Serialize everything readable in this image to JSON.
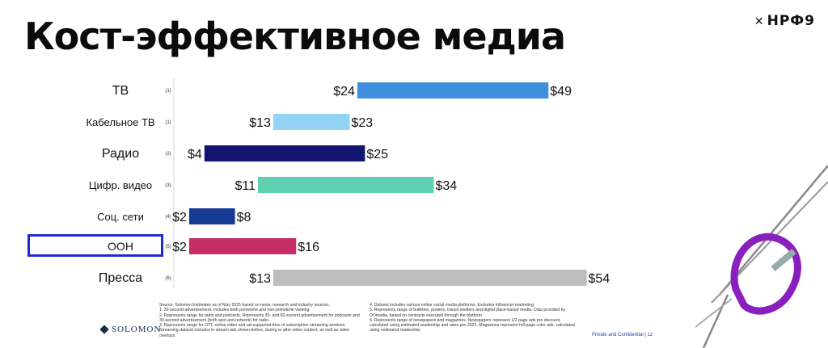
{
  "title": "Кост-эффективное медиа",
  "logo": {
    "mark": "✕",
    "text": "НРФ9"
  },
  "chart_data": {
    "type": "bar",
    "subtype": "floating-range",
    "categories": [
      "ТВ",
      "Кабельное ТВ",
      "Радио",
      "Цифр. видео",
      "Соц. сети",
      "ООН",
      "Пресса"
    ],
    "footnote_refs": [
      "(1)",
      "(1)",
      "(2)",
      "(3)",
      "(4)",
      "(5)",
      "(6)"
    ],
    "low": [
      24,
      13,
      4,
      11,
      2,
      2,
      13
    ],
    "high": [
      49,
      23,
      25,
      34,
      8,
      16,
      54
    ],
    "low_labels": [
      "$24",
      "$13",
      "$4",
      "$11",
      "$2",
      "$2",
      "$13"
    ],
    "high_labels": [
      "$49",
      "$23",
      "$25",
      "$34",
      "$8",
      "$16",
      "$54"
    ],
    "colors": [
      "#3f8fdf",
      "#93d3f5",
      "#121470",
      "#5fcfb4",
      "#163b95",
      "#c42d68",
      "#bdbdbd"
    ],
    "xlim": [
      0,
      55
    ],
    "highlighted_category": "ООН"
  },
  "footnotes": {
    "left": [
      "Source: Solomon Estimates as of May 2025 based on news, research and industry sources.",
      "1.   30-second advertisement. Includes both primetime and non-primetime viewing.",
      "2.   Represents range for radio and podcasts. Represents 30- and 60-second advertisement for podcasts and 30-second advertisement (both spot and network) for radio.",
      "3.   Represents range for OTT, online video and ad-supported tiers of subscription streaming services. Streaming dataset includes in-stream ads shown before, during or after video content, as well as video overlays."
    ],
    "right": [
      "4.   Dataset includes various online social media platforms. Excludes influencer marketing.",
      "5.   Represents range of bulletins, posters, transit shelters and digital place-based media. Data provided by DOmedia, based on contracts executed through the platform.",
      "6.   Represents range of newspapers and magazines. Newspapers represent 1/2 page ads pre discount, calculated using estimated readership and rates pre-2022. Magazines represent full-page color ads, calculated using estimated readership."
    ]
  },
  "footer": {
    "brand": "SOLOMON",
    "confidential": "Private and Confidential | 12"
  }
}
